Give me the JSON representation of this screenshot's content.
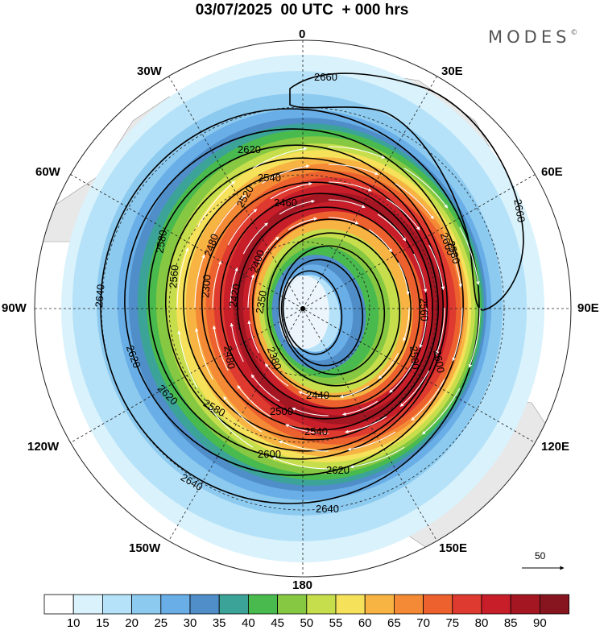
{
  "title": "03/07/2025  00 UTC  + 000 hrs",
  "brand": {
    "name": "MODES",
    "mark": "©"
  },
  "longitude_labels": {
    "n0": "0",
    "e30": "30E",
    "e60": "60E",
    "e90": "90E",
    "e120": "120E",
    "e150": "150E",
    "s180": "180",
    "w150": "150W",
    "w120": "120W",
    "w90": "90W",
    "w60": "60W",
    "w30": "30W"
  },
  "contours": {
    "c2660a": "2660",
    "c2660b": "2660",
    "c2660c": "2660",
    "c2640a": "2640",
    "c2640b": "2640",
    "c2640c": "2640",
    "c2620a": "2620",
    "c2620b": "2620",
    "c2620c": "2620",
    "c2620d": "2620",
    "c2600a": "2600",
    "c2600b": "2600",
    "c2580a": "2580",
    "c2580b": "2580",
    "c2580c": "2580",
    "c2560a": "2560",
    "c2560b": "2560",
    "c2540a": "2540",
    "c2540b": "2540",
    "c2520": "2520",
    "c2500a": "2500",
    "c2500b": "2500",
    "c2480a": "2480",
    "c2480b": "2480",
    "c2460": "2460",
    "c2440": "2440",
    "c2420": "2420",
    "c2400": "2400",
    "c2380": "2380",
    "c2350": "2350",
    "c2300": "2300"
  },
  "wind_reference": {
    "label": "50"
  },
  "colorbar": {
    "ticks": [
      "10",
      "15",
      "20",
      "25",
      "30",
      "35",
      "40",
      "45",
      "50",
      "55",
      "60",
      "65",
      "70",
      "75",
      "80",
      "85",
      "90"
    ],
    "colors": [
      "#ffffff",
      "#d9f2fc",
      "#b5e2f8",
      "#8ccaf0",
      "#69aee6",
      "#4f8ec9",
      "#3ca398",
      "#49ba4e",
      "#86c841",
      "#c6de4b",
      "#f5e15a",
      "#f7b443",
      "#f48a35",
      "#ec612e",
      "#de3a2f",
      "#c81e2a",
      "#a41622",
      "#861520"
    ]
  }
}
